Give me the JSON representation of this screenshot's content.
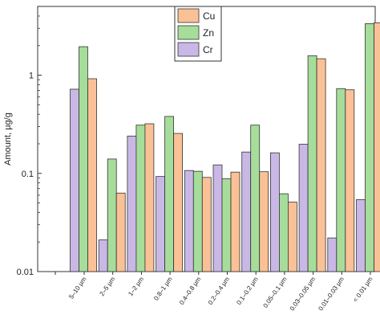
{
  "chart_data": {
    "type": "bar",
    "ylabel": "Amount, µg/g",
    "yscale": "log",
    "ylim": [
      0.01,
      5
    ],
    "yticks": [
      "0.01",
      "0.1",
      "1"
    ],
    "legend_position": "top-center",
    "grid": false,
    "categories": [
      "5–10 µm",
      "2–5 µm",
      "1–2 µm",
      "0.8–1 µm",
      "0.4–0.8 µm",
      "0.2–0.4 µm",
      "0.1–0.2 µm",
      "0.05–0.1 µm",
      "0.03–0.05 µm",
      "0.01–0.03 µm",
      "< 0.01 µm"
    ],
    "series": [
      {
        "name": "Cr",
        "color": "#c9b8e6",
        "values": [
          0.72,
          0.021,
          0.24,
          0.093,
          0.107,
          0.122,
          0.165,
          0.162,
          0.198,
          0.022,
          0.054
        ]
      },
      {
        "name": "Zn",
        "color": "#a6dd9a",
        "values": [
          1.95,
          0.14,
          0.31,
          0.38,
          0.105,
          0.088,
          0.31,
          0.062,
          1.58,
          0.73,
          3.35
        ]
      },
      {
        "name": "Cu",
        "color": "#fac196",
        "values": [
          0.92,
          0.063,
          0.32,
          0.255,
          0.091,
          0.103,
          0.104,
          0.051,
          1.47,
          0.71,
          3.42
        ]
      }
    ],
    "legend_order": [
      "Cu",
      "Zn",
      "Cr"
    ]
  }
}
